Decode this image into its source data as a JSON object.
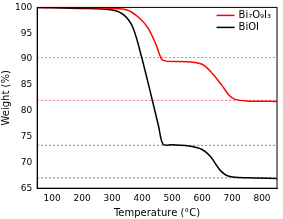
{
  "chart_data": {
    "type": "line",
    "x_label": "Temperature (°C)",
    "y_label": "Weight (%)",
    "xlim": [
      50,
      850
    ],
    "xticks": [
      100,
      200,
      300,
      400,
      500,
      600,
      700,
      800
    ],
    "ylim": [
      65,
      100
    ],
    "yticks": [
      65,
      70,
      75,
      80,
      85,
      90,
      95,
      100
    ],
    "legend": "upper right",
    "series": [
      {
        "name": "Bi₇O₉I₃",
        "color": "#ff0000",
        "line_style": "solid",
        "x": [
          50,
          200,
          300,
          350,
          390,
          420,
          445,
          465,
          480,
          550,
          600,
          630,
          665,
          690,
          710,
          750,
          850
        ],
        "values": [
          100,
          100,
          99.8,
          99.5,
          98,
          96,
          93,
          90,
          89.6,
          89.5,
          89,
          87.5,
          85,
          83,
          82.2,
          81.9,
          81.8
        ]
      },
      {
        "name": "BiOI",
        "color": "#000000",
        "line_style": "solid",
        "x": [
          50,
          200,
          300,
          340,
          370,
          400,
          430,
          455,
          470,
          500,
          550,
          600,
          630,
          660,
          690,
          750,
          850
        ],
        "values": [
          100,
          99.8,
          99.5,
          98.5,
          96,
          90,
          83,
          77,
          73.5,
          73.4,
          73.2,
          72.5,
          71,
          68.5,
          67.3,
          67,
          66.9
        ]
      }
    ],
    "reference_lines": [
      {
        "value": 90.3,
        "color": "#e08080",
        "line_style": "dotted"
      },
      {
        "value": 82.0,
        "color": "#e08080",
        "line_style": "dotted"
      },
      {
        "value": 73.3,
        "color": "#808080",
        "line_style": "dotted"
      },
      {
        "value": 67.0,
        "color": "#808080",
        "line_style": "dotted"
      }
    ]
  }
}
